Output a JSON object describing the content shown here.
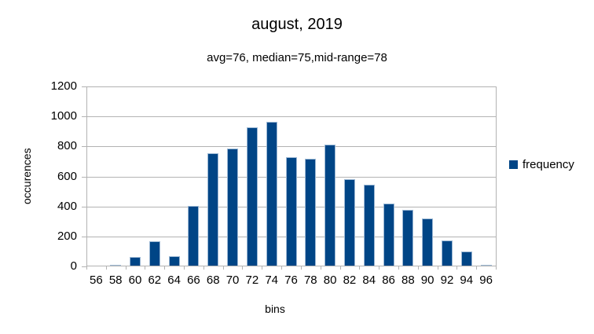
{
  "header": {
    "title": "august, 2019",
    "subtitle": "avg=76, median=75,mid-range=78"
  },
  "chart_data": {
    "type": "bar",
    "title": "august, 2019",
    "subtitle": "avg=76, median=75,mid-range=78",
    "xlabel": "bins",
    "ylabel": "occurences",
    "categories": [
      56,
      58,
      60,
      62,
      64,
      66,
      68,
      70,
      72,
      74,
      76,
      78,
      80,
      82,
      84,
      86,
      88,
      90,
      92,
      94,
      96
    ],
    "values": [
      5,
      8,
      65,
      170,
      67,
      405,
      755,
      785,
      930,
      962,
      730,
      720,
      812,
      580,
      545,
      417,
      375,
      322,
      175,
      100,
      10
    ],
    "ylim": [
      0,
      1200
    ],
    "ytick_step": 200,
    "grid": true,
    "legend": {
      "label": "frequency",
      "position": "right"
    },
    "colors": {
      "bar_fill": "#004586",
      "bar_border": "#9cb8d4",
      "grid_line": "#b3b3b3",
      "text": "#000000",
      "background": "#ffffff"
    }
  }
}
